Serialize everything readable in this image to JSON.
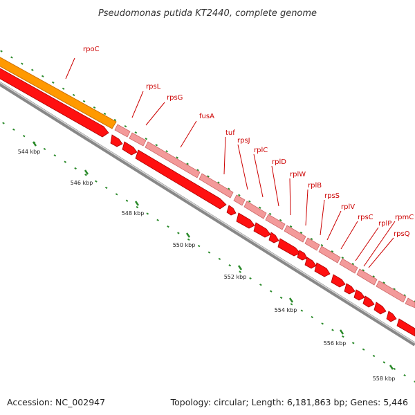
{
  "title": "Pseudomonas putida KT2440, complete genome",
  "footer": {
    "accession": "Accession: NC_002947",
    "summary": "Topology: circular; Length: 6,181,863 bp; Genes: 5,446"
  },
  "colors": {
    "background": "#ffffff",
    "backbone": "#888888",
    "rpoC": "#ff9900",
    "rpoC_edge": "#cc7000",
    "gene_forward": "#ff1010",
    "gene_forward_edge": "#aa0000",
    "gene_light": "#f39a9a",
    "gene_light_edge": "#cc6666",
    "tick_major": "#2a8a2a",
    "tick_minor": "#2a8a2a",
    "label_text": "#cc0000",
    "leader_line": "#cc0000"
  },
  "scale": {
    "unit": "kbp",
    "labels": [
      "544 kbp",
      "546 kbp",
      "548 kbp",
      "550 kbp",
      "552 kbp",
      "554 kbp",
      "556 kbp",
      "558 kbp"
    ]
  },
  "genes": [
    {
      "name": "rpoC"
    },
    {
      "name": "rpsL"
    },
    {
      "name": "rpsG"
    },
    {
      "name": "fusA"
    },
    {
      "name": "tuf"
    },
    {
      "name": "rpsJ"
    },
    {
      "name": "rplC"
    },
    {
      "name": "rplD"
    },
    {
      "name": "rplW"
    },
    {
      "name": "rplB"
    },
    {
      "name": "rpsS"
    },
    {
      "name": "rplV"
    },
    {
      "name": "rpsC"
    },
    {
      "name": "rplP"
    },
    {
      "name": "rpmC"
    },
    {
      "name": "rpsQ"
    }
  ]
}
